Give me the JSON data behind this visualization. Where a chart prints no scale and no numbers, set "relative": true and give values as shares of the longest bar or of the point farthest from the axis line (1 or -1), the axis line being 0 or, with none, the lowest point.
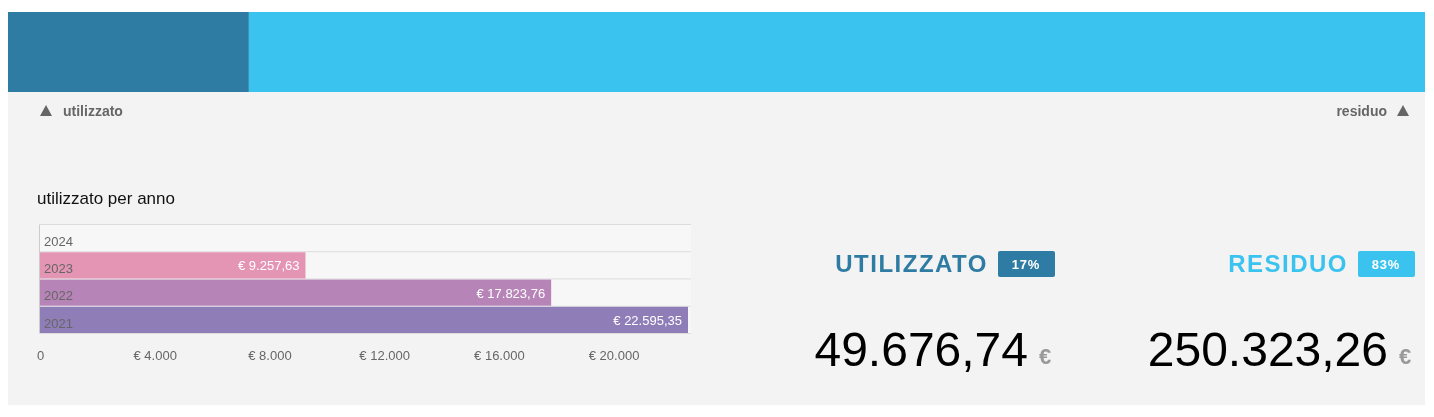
{
  "chart_data": [
    {
      "type": "bar",
      "orientation": "horizontal",
      "stacked": true,
      "relative": true,
      "categories": [
        null
      ],
      "series": [
        {
          "name": "utilizzato",
          "color": "#2e7ca3",
          "values": [
            0.17
          ]
        },
        {
          "name": "residuo",
          "color": "#3bc3ef",
          "values": [
            0.83
          ]
        }
      ]
    },
    {
      "type": "bar",
      "orientation": "horizontal",
      "title": "utilizzato per anno",
      "categories": [
        "2024",
        "2023",
        "2022",
        "2021"
      ],
      "values": [
        null,
        9257.63,
        17823.76,
        22595.35
      ],
      "colors": [
        null,
        "#e595b4",
        "#b784b8",
        "#8f7db8"
      ],
      "value_labels": [
        null,
        "€ 9.257,63",
        "€ 17.823,76",
        "€ 22.595,35"
      ],
      "xlim": [
        0,
        22700
      ],
      "xticks": [
        0,
        {
          "value": 4000,
          "label": "€ 4.000"
        },
        {
          "value": 8000,
          "label": "€ 8.000"
        },
        {
          "value": 12000,
          "label": "€ 12.000"
        },
        {
          "value": 16000,
          "label": "€ 16.000"
        },
        {
          "value": 20000,
          "label": "€ 20.000"
        }
      ]
    },
    {
      "type": "other",
      "colors": [
        "#2e7ca3",
        "#3bc3ef"
      ],
      "annotations": [
        "UTILIZZATO",
        "17%",
        "49.676,74",
        "€",
        "RESIDUO",
        "83%",
        "250.323,26",
        "€"
      ]
    }
  ]
}
